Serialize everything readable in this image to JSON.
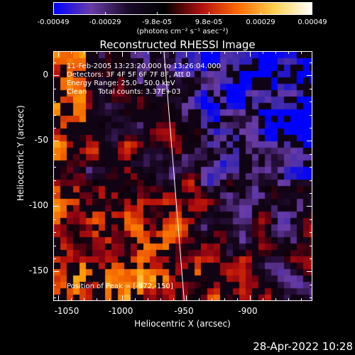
{
  "colorbar": {
    "min_label": "-0.00049",
    "labels": [
      "-0.00049",
      "-0.00029",
      "-9.8e-05",
      "9.8e-05",
      "0.00029",
      "0.00049"
    ],
    "units": "(photons cm⁻² s⁻¹ asec⁻²)"
  },
  "title": "Reconstructed RHESSI Image",
  "info": {
    "line1": "11-Feb-2005 13:23:20.000 to 13:26:04.000",
    "line2": "Detectors: 3F 4F 5F 6F 7F 8F, Att 0",
    "line3": "Energy Range: 25.0 - 50.0 keV",
    "line4": "Clean     Total counts: 3.37E+03",
    "peak": "Position of Peak = [-972,-150]"
  },
  "xaxis": {
    "label": "Heliocentric X (arcsec)",
    "ticks": [
      "-1050",
      "-1000",
      "-950",
      "-900"
    ]
  },
  "yaxis": {
    "label": "Heliocentric Y (arcsec)",
    "ticks": [
      "0",
      "-50",
      "-100",
      "-150"
    ]
  },
  "footer": {
    "date": "28-Apr-2022 10:28"
  },
  "chart_data": {
    "type": "heatmap",
    "title": "Reconstructed RHESSI Image",
    "xlabel": "Heliocentric X (arcsec)",
    "ylabel": "Heliocentric Y (arcsec)",
    "xlim": [
      -1055,
      -863
    ],
    "ylim": [
      -173,
      13
    ],
    "colorscale": [
      "#0000ff",
      "#6a3ca8",
      "#1a0a2a",
      "#000000",
      "#b01010",
      "#ff6a00",
      "#ffd050",
      "#ffffff"
    ],
    "clim": [
      -0.00049,
      0.00049
    ],
    "peak": [
      -972,
      -150
    ],
    "limb_line": [
      [
        -973,
        13
      ],
      [
        -958,
        -173
      ]
    ]
  }
}
